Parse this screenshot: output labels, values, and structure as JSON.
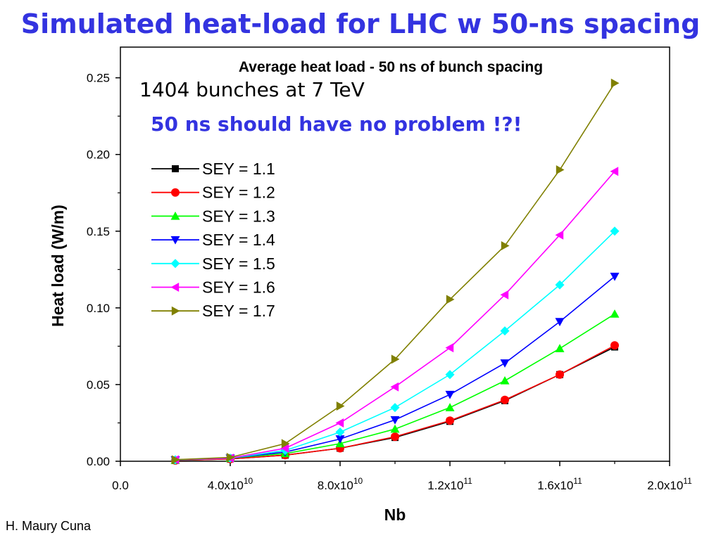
{
  "slide": {
    "title": "Simulated heat-load for LHC w 50-ns spacing",
    "credit": "H. Maury Cuna"
  },
  "annotations": {
    "bunches": "1404 bunches at 7 TeV",
    "problem": "50 ns should have no problem !?!"
  },
  "chart_data": {
    "type": "line",
    "title": "Average heat load  - 50 ns of bunch spacing",
    "xlabel": "Nb",
    "ylabel": "Heat load (W/m)",
    "xlim": [
      0,
      200000000000.0
    ],
    "ylim": [
      0,
      0.27
    ],
    "grid": false,
    "legend_position": "upper-left",
    "x_ticks": [
      {
        "value": 0,
        "mant": "0.0",
        "exp": ""
      },
      {
        "value": 40000000000.0,
        "mant": "4.0x10",
        "exp": "10"
      },
      {
        "value": 80000000000.0,
        "mant": "8.0x10",
        "exp": "10"
      },
      {
        "value": 120000000000.0,
        "mant": "1.2x10",
        "exp": "11"
      },
      {
        "value": 160000000000.0,
        "mant": "1.6x10",
        "exp": "11"
      },
      {
        "value": 200000000000.0,
        "mant": "2.0x10",
        "exp": "11"
      }
    ],
    "y_ticks": [
      {
        "value": 0.0,
        "label": "0.00"
      },
      {
        "value": 0.05,
        "label": "0.05"
      },
      {
        "value": 0.1,
        "label": "0.10"
      },
      {
        "value": 0.15,
        "label": "0.15"
      },
      {
        "value": 0.2,
        "label": "0.20"
      },
      {
        "value": 0.25,
        "label": "0.25"
      }
    ],
    "x": [
      20000000000.0,
      40000000000.0,
      60000000000.0,
      80000000000.0,
      100000000000.0,
      120000000000.0,
      140000000000.0,
      160000000000.0,
      180000000000.0
    ],
    "series": [
      {
        "name": "SEY = 1.1",
        "color": "#000000",
        "marker": "square",
        "values": [
          0.0005,
          0.0015,
          0.004,
          0.0085,
          0.0155,
          0.026,
          0.0395,
          0.0565,
          0.0745
        ]
      },
      {
        "name": "SEY = 1.2",
        "color": "#ff0000",
        "marker": "circle",
        "values": [
          0.0005,
          0.0015,
          0.004,
          0.0085,
          0.016,
          0.0265,
          0.04,
          0.0565,
          0.0755
        ]
      },
      {
        "name": "SEY = 1.3",
        "color": "#00ff00",
        "marker": "triangle-up",
        "values": [
          0.0007,
          0.002,
          0.005,
          0.0115,
          0.021,
          0.035,
          0.0525,
          0.0735,
          0.096
        ]
      },
      {
        "name": "SEY = 1.4",
        "color": "#0000ff",
        "marker": "triangle-down",
        "values": [
          0.0008,
          0.002,
          0.006,
          0.0145,
          0.027,
          0.0435,
          0.064,
          0.091,
          0.1205
        ]
      },
      {
        "name": "SEY = 1.5",
        "color": "#00ffff",
        "marker": "diamond",
        "values": [
          0.0009,
          0.002,
          0.007,
          0.019,
          0.035,
          0.0565,
          0.085,
          0.115,
          0.15
        ]
      },
      {
        "name": "SEY = 1.6",
        "color": "#ff00ff",
        "marker": "triangle-left",
        "values": [
          0.001,
          0.002,
          0.0085,
          0.025,
          0.0485,
          0.074,
          0.1085,
          0.1475,
          0.189
        ]
      },
      {
        "name": "SEY = 1.7",
        "color": "#808000",
        "marker": "triangle-right",
        "values": [
          0.001,
          0.0025,
          0.0115,
          0.036,
          0.0665,
          0.1055,
          0.1405,
          0.19,
          0.2465
        ]
      }
    ]
  }
}
